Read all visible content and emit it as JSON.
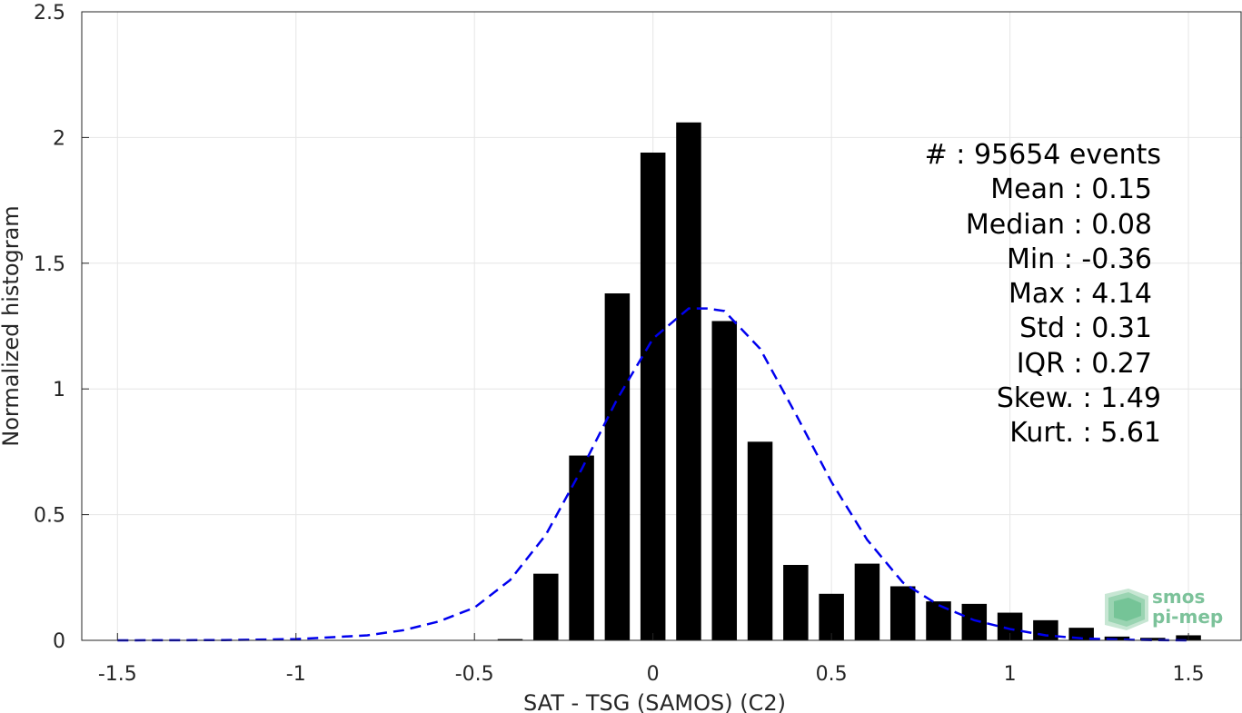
{
  "chart_data": {
    "type": "bar",
    "xlabel": "SAT - TSG (SAMOS) (C2)",
    "ylabel": "Normalized histogram",
    "xlim": [
      -1.6,
      1.65
    ],
    "ylim": [
      0,
      2.5
    ],
    "xticks": [
      "-1.5",
      "-1",
      "-0.5",
      "0",
      "0.5",
      "1",
      "1.5"
    ],
    "xtick_values": [
      -1.5,
      -1,
      -0.5,
      0,
      0.5,
      1,
      1.5
    ],
    "yticks": [
      "0",
      "0.5",
      "1",
      "1.5",
      "2",
      "2.5"
    ],
    "ytick_values": [
      0,
      0.5,
      1,
      1.5,
      2,
      2.5
    ],
    "grid": true,
    "bar_width": 0.07,
    "bars": {
      "x": [
        -0.4,
        -0.3,
        -0.2,
        -0.1,
        0.0,
        0.1,
        0.2,
        0.3,
        0.4,
        0.5,
        0.6,
        0.7,
        0.8,
        0.9,
        1.0,
        1.1,
        1.2,
        1.3,
        1.4,
        1.5
      ],
      "values": [
        0.005,
        0.265,
        0.735,
        1.38,
        1.94,
        2.06,
        1.27,
        0.79,
        0.3,
        0.185,
        0.305,
        0.215,
        0.155,
        0.145,
        0.11,
        0.08,
        0.05,
        0.015,
        0.01,
        0.02
      ],
      "color": "#000000"
    },
    "fit_curve": {
      "style": "dashed",
      "color": "#0000ee",
      "x": [
        -1.5,
        -1.2,
        -1.0,
        -0.8,
        -0.7,
        -0.6,
        -0.5,
        -0.4,
        -0.3,
        -0.2,
        -0.1,
        0.0,
        0.1,
        0.15,
        0.2,
        0.3,
        0.4,
        0.5,
        0.6,
        0.7,
        0.8,
        0.9,
        1.0,
        1.1,
        1.2,
        1.3,
        1.4,
        1.5
      ],
      "y": [
        0.0,
        0.001,
        0.005,
        0.02,
        0.04,
        0.075,
        0.13,
        0.24,
        0.42,
        0.68,
        0.96,
        1.2,
        1.32,
        1.32,
        1.31,
        1.16,
        0.9,
        0.63,
        0.4,
        0.23,
        0.14,
        0.08,
        0.045,
        0.02,
        0.008,
        0.003,
        0.001,
        0.0
      ]
    }
  },
  "stats": {
    "events": "#  : 95654 events",
    "mean": "Mean : 0.15",
    "median": "Median : 0.08",
    "min": "Min : -0.36",
    "max": "Max : 4.14",
    "std": "Std : 0.31",
    "iqr": "IQR : 0.27",
    "skew": "Skew. : 1.49",
    "kurt": "Kurt. : 5.61"
  },
  "logo": {
    "line1": "smos",
    "line2": "pi-mep"
  }
}
